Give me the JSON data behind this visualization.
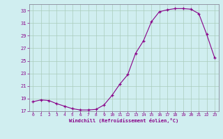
{
  "x": [
    0,
    1,
    2,
    3,
    4,
    5,
    6,
    7,
    8,
    9,
    10,
    11,
    12,
    13,
    14,
    15,
    16,
    17,
    18,
    19,
    20,
    21,
    22,
    23
  ],
  "y": [
    18.5,
    18.8,
    18.7,
    18.2,
    17.8,
    17.4,
    17.2,
    17.2,
    17.3,
    18.0,
    19.5,
    21.3,
    22.8,
    26.2,
    28.2,
    31.2,
    32.8,
    33.1,
    33.3,
    33.3,
    33.2,
    32.5,
    29.2,
    25.5
  ],
  "line_color": "#880088",
  "marker": "+",
  "xlabel": "Windchill (Refroidissement éolien,°C)",
  "ylim": [
    17,
    34
  ],
  "xlim": [
    -0.5,
    23.5
  ],
  "yticks": [
    17,
    19,
    21,
    23,
    25,
    27,
    29,
    31,
    33
  ],
  "xticks": [
    0,
    1,
    2,
    3,
    4,
    5,
    6,
    7,
    8,
    9,
    10,
    11,
    12,
    13,
    14,
    15,
    16,
    17,
    18,
    19,
    20,
    21,
    22,
    23
  ],
  "bg_color": "#d0eef0",
  "grid_color": "#aaccbb",
  "spine_color": "#888899"
}
